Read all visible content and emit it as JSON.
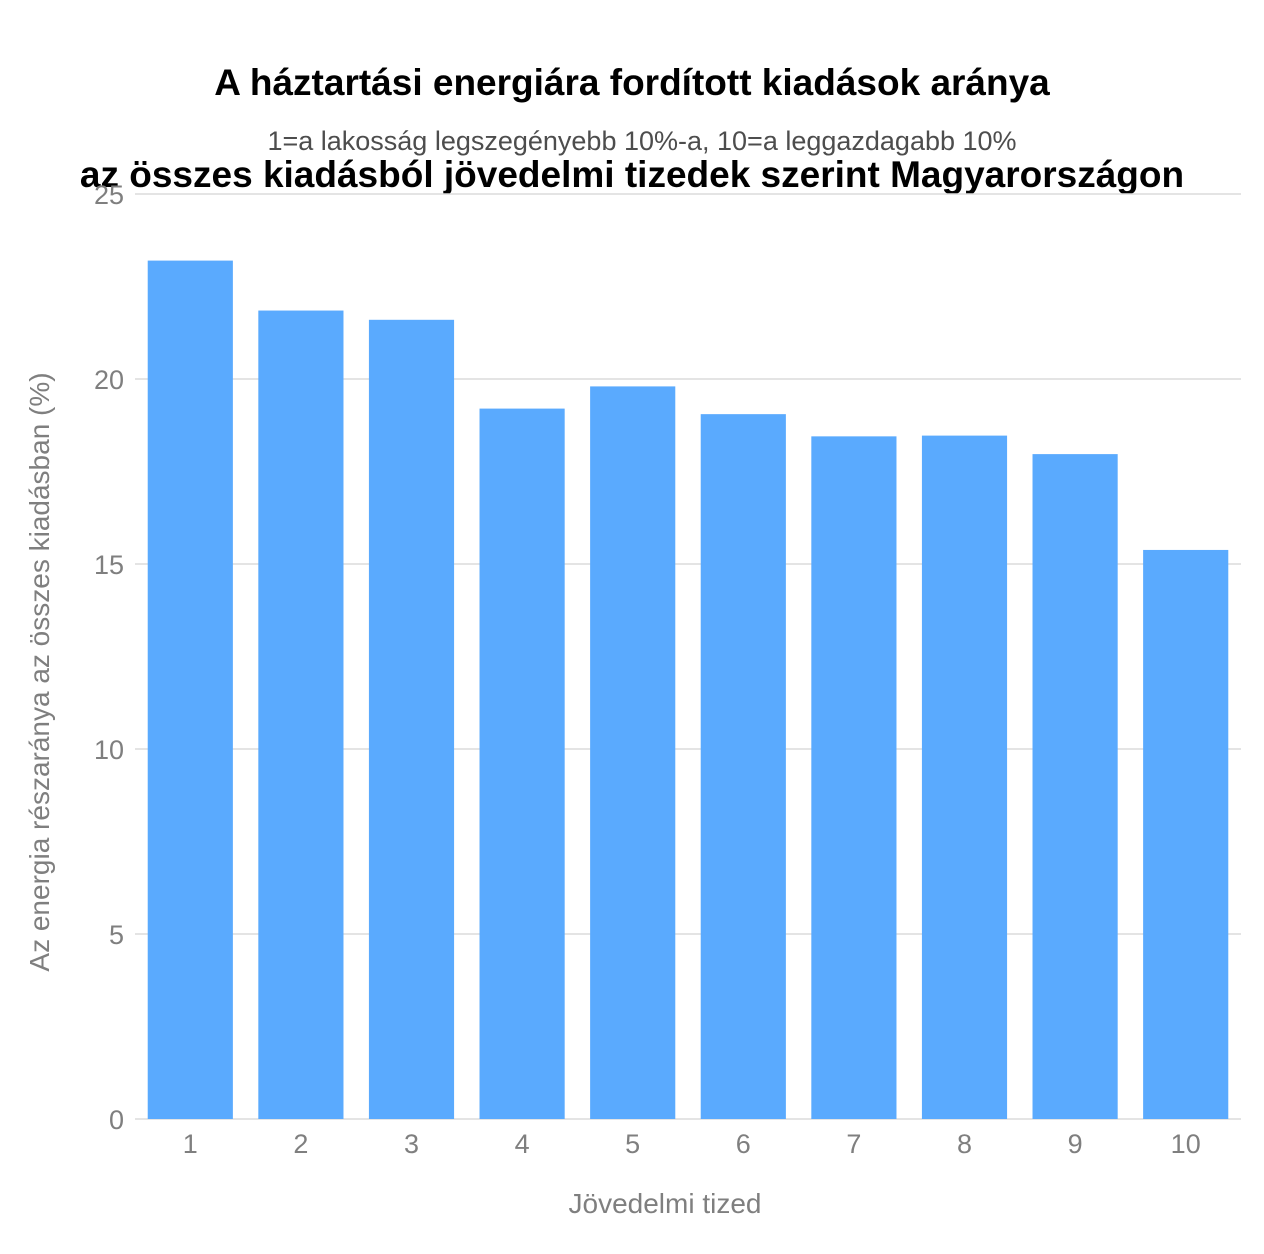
{
  "chart_data": {
    "type": "bar",
    "title_line1": "A háztartási energiára fordított kiadások aránya",
    "title_line2": "az összes kiadásból jövedelmi tizedek szerint Magyarországon",
    "subtitle": "1=a lakosság legszegényebb 10%-a, 10=a leggazdagabb 10%",
    "xlabel": "Jövedelmi tized",
    "ylabel": "Az energia részaránya az összes kiadásban (%)",
    "categories": [
      "1",
      "2",
      "3",
      "4",
      "5",
      "6",
      "7",
      "8",
      "9",
      "10"
    ],
    "values": [
      23.2,
      21.85,
      21.6,
      19.2,
      19.8,
      19.05,
      18.45,
      18.47,
      17.97,
      15.38
    ],
    "ylim": [
      0,
      25
    ],
    "yticks": [
      "0",
      "5",
      "10",
      "15",
      "20",
      "25"
    ],
    "grid": "horizontal",
    "bar_color": "#5aaafe",
    "grid_color": "#dcdcdc",
    "tick_color": "#7f7f7f"
  }
}
